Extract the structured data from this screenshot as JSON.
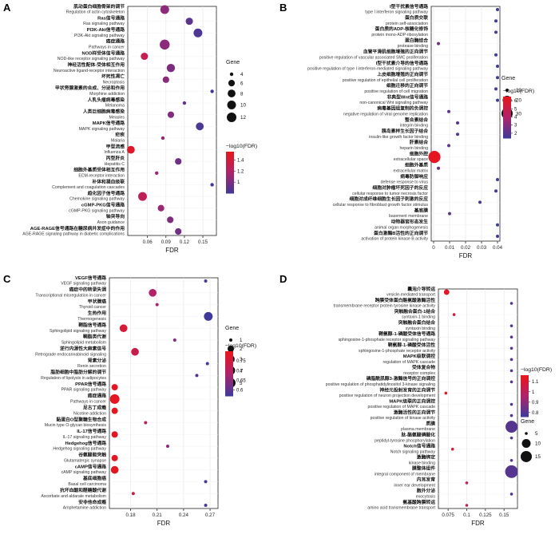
{
  "chart_data": [
    {
      "panel": "A",
      "type": "scatter",
      "xlabel": "FDR",
      "xticks": [
        0.06,
        0.09,
        0.12,
        0.15
      ],
      "xlim": [
        0.028,
        0.172
      ],
      "gene_legend": {
        "title": "Gene",
        "values": [
          4,
          6,
          8,
          10,
          12
        ]
      },
      "color_legend": {
        "title": "−log10(FDR)",
        "ticks": [
          1.4,
          1.2,
          1.0
        ]
      },
      "color_range": [
        0.8,
        1.55
      ],
      "terms": [
        {
          "cn": "肌动蛋白细胞骨架的调节",
          "en": "Regulation of actin cytoskeleton",
          "fdr": 0.088,
          "gene": 10,
          "logfdr": 1.06
        },
        {
          "cn": "Ras信号通路",
          "en": "Ras signaling pathway",
          "fdr": 0.128,
          "gene": 7,
          "logfdr": 0.89
        },
        {
          "cn": "PI3K-Akt信号通路",
          "en": "PI3K-Akt signaling pathway",
          "fdr": 0.142,
          "gene": 10,
          "logfdr": 0.85
        },
        {
          "cn": "癌症通路",
          "en": "Pathways in cancer",
          "fdr": 0.088,
          "gene": 13,
          "logfdr": 1.06
        },
        {
          "cn": "NOD样受体信号通路",
          "en": "NOD-like receptor signaling pathway",
          "fdr": 0.055,
          "gene": 7,
          "logfdr": 1.3
        },
        {
          "cn": "神经活性配体-受体相互作用",
          "en": "Neuroactive ligand-receptor interaction",
          "fdr": 0.098,
          "gene": 9,
          "logfdr": 1.0
        },
        {
          "cn": "坏死性凋亡",
          "en": "Necroptosis",
          "fdr": 0.09,
          "gene": 6,
          "logfdr": 1.05
        },
        {
          "cn": "甲状旁腺激素的合成、分泌和作用",
          "en": "Morphine addiction",
          "fdr": 0.165,
          "gene": 4,
          "logfdr": 0.8
        },
        {
          "cn": "人乳头瘤病毒感染",
          "en": "Melanoma",
          "fdr": 0.12,
          "gene": 3,
          "logfdr": 0.92
        },
        {
          "cn": "人类巨细胞病毒感染",
          "en": "Measles",
          "fdr": 0.098,
          "gene": 6,
          "logfdr": 1.01
        },
        {
          "cn": "MAPK信号通路",
          "en": "MAPK signaling pathway",
          "fdr": 0.145,
          "gene": 8,
          "logfdr": 0.84
        },
        {
          "cn": "疟疾",
          "en": "Malaria",
          "fdr": 0.085,
          "gene": 3,
          "logfdr": 1.07
        },
        {
          "cn": "甲型流感",
          "en": "Influenza A",
          "fdr": 0.033,
          "gene": 8,
          "logfdr": 1.48
        },
        {
          "cn": "丙型肝炎",
          "en": "Hepatitis C",
          "fdr": 0.11,
          "gene": 6,
          "logfdr": 0.96
        },
        {
          "cn": "细胞外基质受体相互作用",
          "en": "ECM-receptor interaction",
          "fdr": 0.075,
          "gene": 4,
          "logfdr": 1.12
        },
        {
          "cn": "补体和凝血级联",
          "en": "Complement and coagulation cascades",
          "fdr": 0.165,
          "gene": 3,
          "logfdr": 0.79
        },
        {
          "cn": "趋化因子信号通路",
          "en": "Chemokine signaling pathway",
          "fdr": 0.052,
          "gene": 10,
          "logfdr": 1.28
        },
        {
          "cn": "cGMP-PKG信号通路",
          "en": "cGMP-PKG signaling pathway",
          "fdr": 0.082,
          "gene": 6,
          "logfdr": 1.1
        },
        {
          "cn": "轴突导向",
          "en": "Axon guidance",
          "fdr": 0.097,
          "gene": 6,
          "logfdr": 1.01
        },
        {
          "cn": "AGE-RAGE信号通路在糖尿病并发症中的作用",
          "en": "AGE-RAGE signaling pathway in diabetic complications",
          "fdr": 0.11,
          "gene": 6,
          "logfdr": 0.96
        }
      ]
    },
    {
      "panel": "B",
      "type": "scatter",
      "xlabel": "FDR",
      "xticks": [
        0.0,
        0.01,
        0.02,
        0.03,
        0.04
      ],
      "xlim": [
        -0.0015,
        0.0415
      ],
      "gene_legend": {
        "title": "Gene",
        "values": [
          10,
          20,
          30
        ]
      },
      "color_legend": {
        "title": "−log10(FDR)",
        "ticks": [
          6,
          5,
          4,
          3,
          2
        ]
      },
      "color_range": [
        1.4,
        6.5
      ],
      "terms": [
        {
          "cn": "I型干扰素信号通路",
          "en": "type I interferon signaling pathway",
          "fdr": 0.04,
          "gene": 3,
          "logfdr": 1.4
        },
        {
          "cn": "蛋白质交联",
          "en": "protein self-association",
          "fdr": 0.039,
          "gene": 4,
          "logfdr": 1.42
        },
        {
          "cn": "蛋白质的ADP-核糖化修饰",
          "en": "protein mono-ADP-ribosylation",
          "fdr": 0.039,
          "gene": 3,
          "logfdr": 1.42
        },
        {
          "cn": "蛋白酶结合",
          "en": "protease binding",
          "fdr": 0.003,
          "gene": 6,
          "logfdr": 2.5
        },
        {
          "cn": "血管平滑肌细胞增殖的正向调节",
          "en": "positive regulation of vascular associated SMC proliferation",
          "fdr": 0.039,
          "gene": 3,
          "logfdr": 1.42
        },
        {
          "cn": "I型干扰素介导的信号通路",
          "en": "positive regulation of type I interferon-mediated signaling pathway",
          "fdr": 0.04,
          "gene": 3,
          "logfdr": 1.4
        },
        {
          "cn": "上皮细胞增殖的正向调节",
          "en": "positive regulation of epithelial cell proliferation",
          "fdr": 0.04,
          "gene": 4,
          "logfdr": 1.4
        },
        {
          "cn": "细胞迁移的正向调节",
          "en": "positive regulation of cell migration",
          "fdr": 0.039,
          "gene": 10,
          "logfdr": 1.42
        },
        {
          "cn": "非典型Wnt信号通路",
          "en": "non-canonical Wnt signaling pathway",
          "fdr": 0.04,
          "gene": 3,
          "logfdr": 1.4
        },
        {
          "cn": "病毒基因组复制的负调控",
          "en": "negative regulation of viral genome replication",
          "fdr": 0.0095,
          "gene": 4,
          "logfdr": 2.0
        },
        {
          "cn": "整合素结合",
          "en": "integrin binding",
          "fdr": 0.015,
          "gene": 8,
          "logfdr": 1.8
        },
        {
          "cn": "胰岛素样生长因子结合",
          "en": "insulin-like growth factor binding",
          "fdr": 0.015,
          "gene": 6,
          "logfdr": 1.8
        },
        {
          "cn": "肝素结合",
          "en": "heparin binding",
          "fdr": 0.0095,
          "gene": 5,
          "logfdr": 2.0
        },
        {
          "cn": "细胞外腔",
          "en": "extracellular space",
          "fdr": 0.0005,
          "gene": 35,
          "logfdr": 6.3
        },
        {
          "cn": "细胞外基质",
          "en": "extracellular matrix",
          "fdr": 0.003,
          "gene": 9,
          "logfdr": 2.5
        },
        {
          "cn": "病毒防御响应",
          "en": "defense response to virus",
          "fdr": 0.04,
          "gene": 10,
          "logfdr": 1.4
        },
        {
          "cn": "细胞对肿瘤坏死因子的反应",
          "en": "cellular response to tumor necrosis factor",
          "fdr": 0.039,
          "gene": 6,
          "logfdr": 1.42
        },
        {
          "cn": "细胞对成纤维细胞生长因子刺激的反应",
          "en": "cellular response to fibroblast growth factor stimulus",
          "fdr": 0.029,
          "gene": 3,
          "logfdr": 1.54
        },
        {
          "cn": "基底膜",
          "en": "basement membrane",
          "fdr": 0.01,
          "gene": 6,
          "logfdr": 2.0
        },
        {
          "cn": "动物器官形态发生",
          "en": "animal organ morphogenesis",
          "fdr": 0.04,
          "gene": 6,
          "logfdr": 1.4
        },
        {
          "cn": "蛋白激酶B活性的正向调节",
          "en": "activation of protein kinase B activity",
          "fdr": 0.04,
          "gene": 3,
          "logfdr": 1.4
        }
      ]
    },
    {
      "panel": "C",
      "type": "scatter",
      "xlabel": "FDR",
      "xticks": [
        0.18,
        0.21,
        0.24,
        0.27
      ],
      "xlim": [
        0.156,
        0.279
      ],
      "gene_legend": {
        "title": "Gene",
        "values": [
          1,
          2,
          3,
          4,
          5
        ]
      },
      "color_legend": {
        "title": "−log10(FDR)",
        "ticks": [
          0.75,
          0.7,
          0.65,
          0.6
        ]
      },
      "color_range": [
        0.57,
        0.8
      ],
      "terms": [
        {
          "cn": "VEGF信号通路",
          "en": "VEGF signaling pathway",
          "fdr": 0.265,
          "gene": 1,
          "logfdr": 0.58
        },
        {
          "cn": "癌症中的转录失调",
          "en": "Transcriptional misregulation in cancer",
          "fdr": 0.205,
          "gene": 3,
          "logfdr": 0.69
        },
        {
          "cn": "甲状腺癌",
          "en": "Thyroid cancer",
          "fdr": 0.21,
          "gene": 1,
          "logfdr": 0.68
        },
        {
          "cn": "生热作用",
          "en": "Thermogenesis",
          "fdr": 0.268,
          "gene": 4,
          "logfdr": 0.57
        },
        {
          "cn": "鞘脂信号通路",
          "en": "Sphingolipid signaling pathway",
          "fdr": 0.172,
          "gene": 3,
          "logfdr": 0.76
        },
        {
          "cn": "鞘脂类代谢",
          "en": "Sphingolipid metabolism",
          "fdr": 0.23,
          "gene": 1,
          "logfdr": 0.64
        },
        {
          "cn": "逆行内源性大麻素信号",
          "en": "Retrograde endocannabinoid signaling",
          "fdr": 0.185,
          "gene": 3,
          "logfdr": 0.73
        },
        {
          "cn": "肾素分泌",
          "en": "Renin secretion",
          "fdr": 0.267,
          "gene": 1,
          "logfdr": 0.57
        },
        {
          "cn": "脂肪细胞中脂肪分解的调节",
          "en": "Regulation of lipolysis in adipocytes",
          "fdr": 0.255,
          "gene": 1,
          "logfdr": 0.59
        },
        {
          "cn": "PPAR信号通路",
          "en": "PPAR signaling pathway",
          "fdr": 0.162,
          "gene": 2,
          "logfdr": 0.79
        },
        {
          "cn": "癌症通路",
          "en": "Pathways in cancer",
          "fdr": 0.162,
          "gene": 5,
          "logfdr": 0.79
        },
        {
          "cn": "尼古丁成瘾",
          "en": "Nicotine addiction",
          "fdr": 0.162,
          "gene": 2,
          "logfdr": 0.79
        },
        {
          "cn": "黏蛋白O型聚糖生物合成",
          "en": "Mucin type O-glycan biosynthesis",
          "fdr": 0.197,
          "gene": 1,
          "logfdr": 0.7
        },
        {
          "cn": "IL-17信号通路",
          "en": "IL-17 signaling pathway",
          "fdr": 0.162,
          "gene": 2,
          "logfdr": 0.79
        },
        {
          "cn": "Hedgehog信号通路",
          "en": "Hedgehog signaling pathway",
          "fdr": 0.222,
          "gene": 1,
          "logfdr": 0.65
        },
        {
          "cn": "谷氨酸能突触",
          "en": "Glutamatergic synapse",
          "fdr": 0.162,
          "gene": 2,
          "logfdr": 0.79
        },
        {
          "cn": "cAMP信号通路",
          "en": "cAMP signaling pathway",
          "fdr": 0.162,
          "gene": 3,
          "logfdr": 0.79
        },
        {
          "cn": "基底细胞癌",
          "en": "Basal cell carcinoma",
          "fdr": 0.265,
          "gene": 1,
          "logfdr": 0.58
        },
        {
          "cn": "抗坏血酸和醛糖酸代谢",
          "en": "Ascorbate and aldarate metabolism",
          "fdr": 0.183,
          "gene": 1,
          "logfdr": 0.74
        },
        {
          "cn": "安非他命成瘾",
          "en": "Amphetamine addiction",
          "fdr": 0.265,
          "gene": 1,
          "logfdr": 0.58
        }
      ]
    },
    {
      "panel": "D",
      "type": "scatter",
      "xlabel": "FDR",
      "xticks": [
        0.075,
        0.1,
        0.125,
        0.15
      ],
      "xlim": [
        0.062,
        0.168
      ],
      "gene_legend": {
        "title": "Gene",
        "values": [
          5,
          10,
          15
        ]
      },
      "color_legend": {
        "title": "−log10(FDR)",
        "ticks": [
          1.1,
          1.0,
          0.9,
          0.8
        ]
      },
      "color_range": [
        0.76,
        1.16
      ],
      "terms": [
        {
          "cn": "囊泡介导转运",
          "en": "vesicle-mediated transport",
          "fdr": 0.073,
          "gene": 6,
          "logfdr": 1.14
        },
        {
          "cn": "跨膜受体蛋白酪氨酸激酶活性",
          "en": "transmembrane receptor protein tyrosine kinase activity",
          "fdr": 0.16,
          "gene": 3,
          "logfdr": 0.8
        },
        {
          "cn": "突触融合蛋白-1结合",
          "en": "syntaxin-1 binding",
          "fdr": 0.083,
          "gene": 2,
          "logfdr": 1.08
        },
        {
          "cn": "突触融合蛋白结合",
          "en": "syntaxin binding",
          "fdr": 0.16,
          "gene": 3,
          "logfdr": 0.8
        },
        {
          "cn": "鞘氨醇-1-磷酸受体信号通路",
          "en": "sphingosine-1-phosphate receptor signaling pathway",
          "fdr": 0.16,
          "gene": 2,
          "logfdr": 0.8
        },
        {
          "cn": "鞘氨醇-1-磷酸受体活性",
          "en": "sphingosine-1-phosphate receptor activity",
          "fdr": 0.16,
          "gene": 2,
          "logfdr": 0.8
        },
        {
          "cn": "MAPK级联调控",
          "en": "regulation of MAPK cascade",
          "fdr": 0.16,
          "gene": 3,
          "logfdr": 0.8
        },
        {
          "cn": "受体复合物",
          "en": "receptor complex",
          "fdr": 0.16,
          "gene": 4,
          "logfdr": 0.8
        },
        {
          "cn": "磷脂酰肌醇3-激酶信号的正向调控",
          "en": "positive regulation of phosphatidylinositol 3-kinase signaling",
          "fdr": 0.16,
          "gene": 3,
          "logfdr": 0.8
        },
        {
          "cn": "神经元投射发育的正向调节",
          "en": "positive regulation of neuron projection development",
          "fdr": 0.072,
          "gene": 4,
          "logfdr": 1.14
        },
        {
          "cn": "MAPK级联的正向调控",
          "en": "positive regulation of MAPK cascade",
          "fdr": 0.16,
          "gene": 3,
          "logfdr": 0.8
        },
        {
          "cn": "激酶活性的正向调节",
          "en": "positive regulation of kinase activity",
          "fdr": 0.16,
          "gene": 3,
          "logfdr": 0.8
        },
        {
          "cn": "质膜",
          "en": "plasma membrane",
          "fdr": 0.16,
          "gene": 17,
          "logfdr": 0.8
        },
        {
          "cn": "肽-酪氨酸磷酸化",
          "en": "peptidyl-tyrosine phosphorylation",
          "fdr": 0.16,
          "gene": 3,
          "logfdr": 0.8
        },
        {
          "cn": "Notch信号通路",
          "en": "Notch signaling pathway",
          "fdr": 0.081,
          "gene": 4,
          "logfdr": 1.09
        },
        {
          "cn": "激酶绑定",
          "en": "kinase binding",
          "fdr": 0.16,
          "gene": 3,
          "logfdr": 0.8
        },
        {
          "cn": "膜整体组件",
          "en": "integral component of membrane",
          "fdr": 0.16,
          "gene": 19,
          "logfdr": 0.8
        },
        {
          "cn": "内耳发育",
          "en": "inner ear development",
          "fdr": 0.1,
          "gene": 2,
          "logfdr": 1.0
        },
        {
          "cn": "胞外分泌",
          "en": "exocytosis",
          "fdr": 0.16,
          "gene": 3,
          "logfdr": 0.8
        },
        {
          "cn": "氨基酸跨膜转运",
          "en": "amino acid transmembrane transport",
          "fdr": 0.1,
          "gene": 2,
          "logfdr": 1.0
        }
      ]
    }
  ],
  "panels": {
    "A": {
      "label": "A"
    },
    "B": {
      "label": "B"
    },
    "C": {
      "label": "C"
    },
    "D": {
      "label": "D"
    }
  },
  "colors": {
    "high": "#e8161b",
    "mid": "#b0236a",
    "low": "#3f3a9a"
  }
}
